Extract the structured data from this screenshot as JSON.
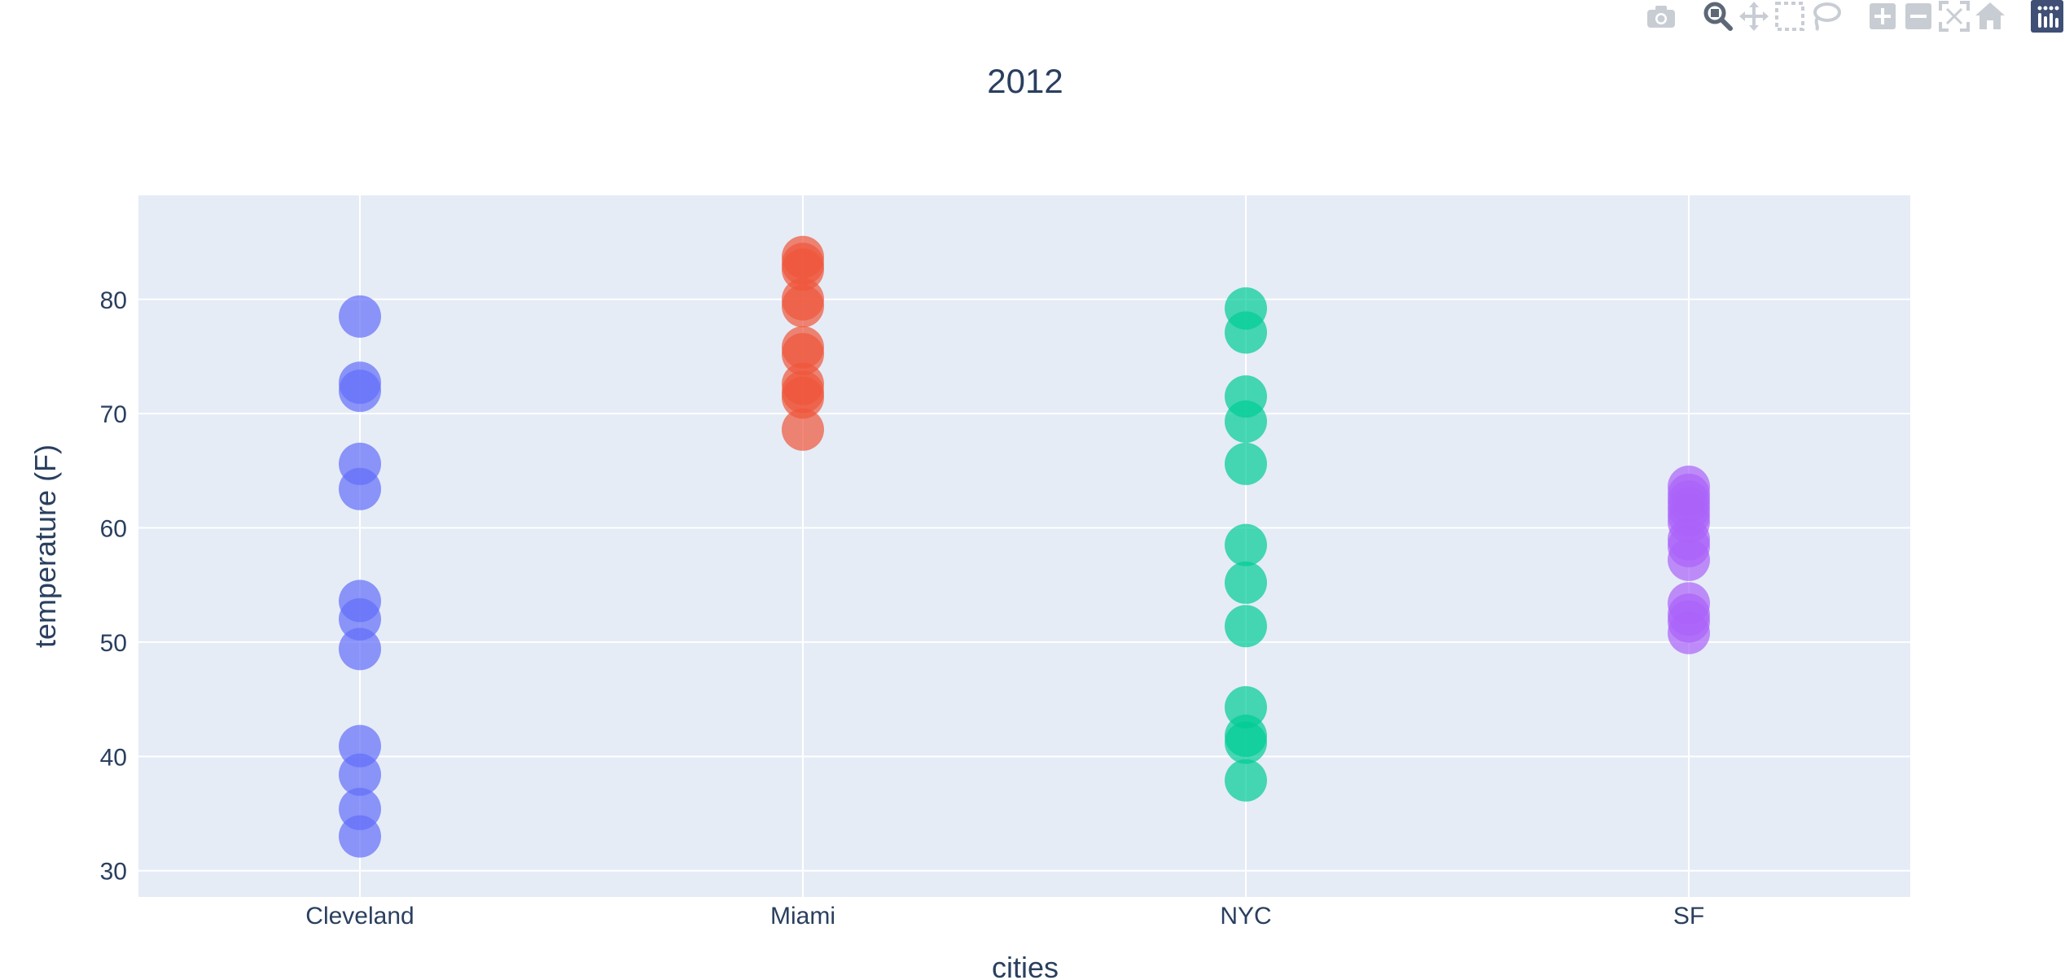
{
  "modebar": {
    "buttons": [
      {
        "group": 1,
        "icon": "camera-icon",
        "name": "download-plot-button"
      },
      {
        "group": 2,
        "icon": "zoom-icon",
        "name": "zoom-button",
        "active": true
      },
      {
        "group": 2,
        "icon": "pan-icon",
        "name": "pan-button"
      },
      {
        "group": 2,
        "icon": "box-select-icon",
        "name": "box-select-button"
      },
      {
        "group": 2,
        "icon": "lasso-select-icon",
        "name": "lasso-select-button"
      },
      {
        "group": 3,
        "icon": "zoom-in-icon",
        "name": "zoom-in-button"
      },
      {
        "group": 3,
        "icon": "zoom-out-icon",
        "name": "zoom-out-button"
      },
      {
        "group": 3,
        "icon": "autoscale-icon",
        "name": "autoscale-button"
      },
      {
        "group": 3,
        "icon": "reset-axes-icon",
        "name": "reset-axes-button"
      },
      {
        "group": 4,
        "icon": "plotly-logo-icon",
        "name": "plotly-logo"
      }
    ],
    "icon_color": "#c8cdd4",
    "active_color": "#5d6876",
    "logo_color": "#3f4f75"
  },
  "chart_data": {
    "type": "scatter",
    "title": "2012",
    "xlabel": "cities",
    "ylabel": "temperature (F)",
    "categories": [
      "Cleveland",
      "Miami",
      "NYC",
      "SF"
    ],
    "ylim": [
      27.7,
      89.1
    ],
    "yticks": [
      30,
      40,
      50,
      60,
      70,
      80
    ],
    "grid": true,
    "plot_bg": "#e5ecf6",
    "series": [
      {
        "category": "Cleveland",
        "color": "#636efa",
        "values": [
          78.5,
          72.7,
          72.0,
          65.6,
          63.4,
          53.6,
          52.0,
          49.4,
          40.9,
          38.4,
          35.4,
          33.0
        ]
      },
      {
        "category": "Miami",
        "color": "#ef553b",
        "values": [
          83.7,
          83.1,
          82.6,
          80.0,
          79.4,
          75.8,
          75.2,
          72.6,
          71.9,
          71.4,
          68.6
        ]
      },
      {
        "category": "NYC",
        "color": "#00cc96",
        "values": [
          79.2,
          77.1,
          71.5,
          69.3,
          65.6,
          58.5,
          55.2,
          51.4,
          44.3,
          41.8,
          41.2,
          37.9
        ]
      },
      {
        "category": "SF",
        "color": "#ab63fa",
        "values": [
          63.6,
          62.9,
          62.3,
          61.7,
          61.1,
          60.5,
          59.0,
          58.4,
          57.2,
          53.4,
          52.4,
          51.8,
          50.8
        ]
      }
    ]
  }
}
